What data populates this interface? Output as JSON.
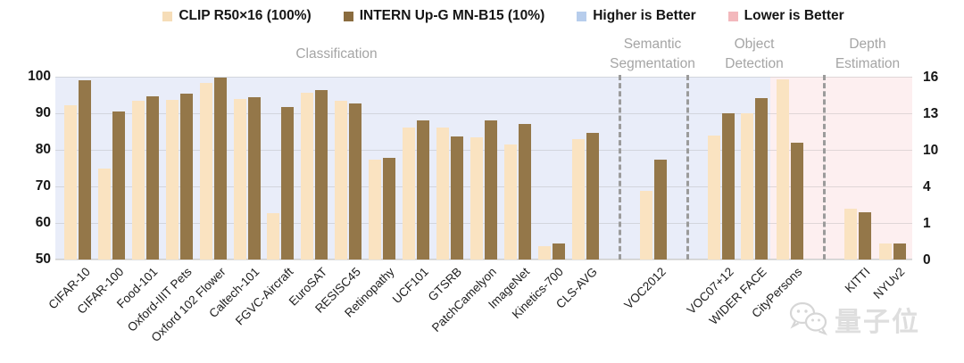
{
  "legend": [
    {
      "label": "CLIP R50×16 (100%)",
      "color": "#f6ddb8"
    },
    {
      "label": "INTERN Up-G MN-B15 (10%)",
      "color": "#8a6c3f"
    },
    {
      "label": "Higher is Better",
      "color": "#b7cdec"
    },
    {
      "label": "Lower is Better",
      "color": "#f3b8bc"
    }
  ],
  "sections": [
    {
      "label": "Classification"
    },
    {
      "label": "Semantic Segmentation"
    },
    {
      "label": "Object Detection"
    },
    {
      "label": "Depth Estimation"
    }
  ],
  "watermark_text": "量子位",
  "chart_data": {
    "type": "bar",
    "series": [
      {
        "name": "CLIP R50×16 (100%)",
        "color": "#fae3c1"
      },
      {
        "name": "INTERN Up-G MN-B15 (10%)",
        "color": "#947749"
      }
    ],
    "left_axis": {
      "ticks": [
        100,
        90,
        80,
        70,
        60,
        50
      ],
      "range": [
        50,
        100
      ]
    },
    "right_axis": {
      "ticks": [
        16,
        13,
        10,
        4,
        1,
        0
      ],
      "note": "non-linear tick spacing as printed"
    },
    "background_bands": [
      {
        "label": "Higher is Better",
        "color": "#e9edf9"
      },
      {
        "label": "Lower is Better",
        "color": "#fdeff0"
      }
    ],
    "categories": [
      {
        "label": "CIFAR-10",
        "section": "Classification",
        "axis": "left",
        "values": [
          92.3,
          99.0
        ]
      },
      {
        "label": "CIFAR-100",
        "section": "Classification",
        "axis": "left",
        "values": [
          74.8,
          90.5
        ]
      },
      {
        "label": "Food-101",
        "section": "Classification",
        "axis": "left",
        "values": [
          93.4,
          94.6
        ]
      },
      {
        "label": "Oxford-IIIT Pets",
        "section": "Classification",
        "axis": "left",
        "values": [
          93.6,
          95.4
        ]
      },
      {
        "label": "Oxford 102 Flower",
        "section": "Classification",
        "axis": "left",
        "values": [
          98.4,
          99.8
        ]
      },
      {
        "label": "Caltech-101",
        "section": "Classification",
        "axis": "left",
        "values": [
          94.0,
          94.5
        ]
      },
      {
        "label": "FGVC-Aircraft",
        "section": "Classification",
        "axis": "left",
        "values": [
          62.6,
          91.8
        ]
      },
      {
        "label": "EuroSAT",
        "section": "Classification",
        "axis": "left",
        "values": [
          95.7,
          96.4
        ]
      },
      {
        "label": "RESISC45",
        "section": "Classification",
        "axis": "left",
        "values": [
          93.5,
          92.8
        ]
      },
      {
        "label": "Retinopathy",
        "section": "Classification",
        "axis": "left",
        "values": [
          77.2,
          77.8
        ]
      },
      {
        "label": "UCF101",
        "section": "Classification",
        "axis": "left",
        "values": [
          86.0,
          88.0
        ]
      },
      {
        "label": "GTSRB",
        "section": "Classification",
        "axis": "left",
        "values": [
          86.0,
          83.6
        ]
      },
      {
        "label": "PatchCamelyon",
        "section": "Classification",
        "axis": "left",
        "values": [
          83.4,
          88.0
        ]
      },
      {
        "label": "ImageNet",
        "section": "Classification",
        "axis": "left",
        "values": [
          81.5,
          87.0
        ]
      },
      {
        "label": "Kinetics-700",
        "section": "Classification",
        "axis": "left",
        "values": [
          53.6,
          54.5
        ]
      },
      {
        "label": "CLS-AVG",
        "section": "Classification",
        "axis": "left",
        "values": [
          83.0,
          84.6
        ]
      },
      {
        "label": "VOC2012",
        "section": "Semantic Segmentation",
        "axis": "left",
        "values": [
          68.8,
          77.4
        ]
      },
      {
        "label": "VOC07+12",
        "section": "Object Detection",
        "axis": "left",
        "values": [
          83.8,
          90.0
        ]
      },
      {
        "label": "WIDER FACE",
        "section": "Object Detection",
        "axis": "left",
        "values": [
          90.1,
          94.1
        ]
      },
      {
        "label": "CityPersons",
        "section": "Object Detection",
        "axis": "right",
        "values": [
          15.8,
          10.6
        ]
      },
      {
        "label": "KITTI",
        "section": "Depth Estimation",
        "axis": "right",
        "values": [
          2.2,
          1.9
        ]
      },
      {
        "label": "NYUv2",
        "section": "Depth Estimation",
        "axis": "right",
        "values": [
          0.45,
          0.44
        ]
      }
    ]
  }
}
